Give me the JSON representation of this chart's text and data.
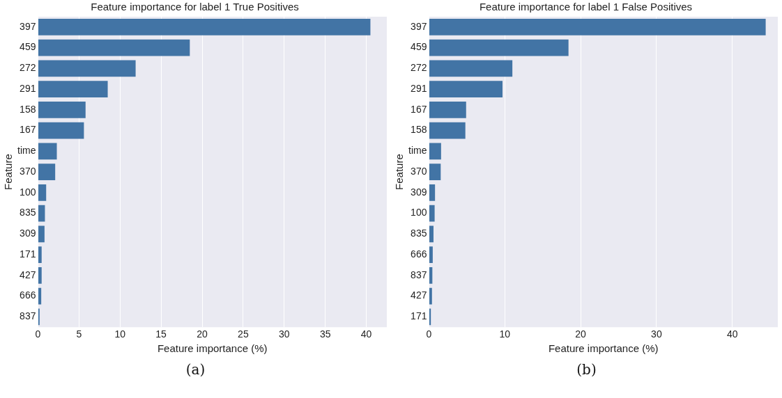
{
  "chart_data": [
    {
      "type": "bar",
      "orientation": "horizontal",
      "title": "Feature importance for label 1 True Positives",
      "xlabel": "Feature importance (%)",
      "ylabel": "Feature",
      "categories": [
        "397",
        "459",
        "272",
        "291",
        "158",
        "167",
        "time",
        "370",
        "100",
        "835",
        "309",
        "171",
        "427",
        "666",
        "837"
      ],
      "values": [
        40.5,
        18.5,
        11.9,
        8.5,
        5.8,
        5.6,
        2.3,
        2.1,
        1.0,
        0.85,
        0.8,
        0.45,
        0.45,
        0.4,
        0.2
      ],
      "color": "#4274a5",
      "xlim": [
        0,
        42.5
      ],
      "xticks": [
        0,
        5,
        10,
        15,
        20,
        25,
        30,
        35,
        40
      ],
      "grid": "x",
      "legend": false,
      "annotations": [
        "(a)"
      ]
    },
    {
      "type": "bar",
      "orientation": "horizontal",
      "title": "Feature importance for label 1 False Positives",
      "xlabel": "Feature importance (%)",
      "ylabel": "Feature",
      "categories": [
        "397",
        "459",
        "272",
        "291",
        "167",
        "158",
        "time",
        "370",
        "309",
        "100",
        "835",
        "666",
        "837",
        "427",
        "171"
      ],
      "values": [
        44.4,
        18.4,
        11.0,
        9.7,
        4.9,
        4.8,
        1.6,
        1.55,
        0.8,
        0.75,
        0.6,
        0.5,
        0.45,
        0.4,
        0.25
      ],
      "color": "#4274a5",
      "xlim": [
        0,
        46
      ],
      "xticks": [
        0,
        10,
        20,
        30,
        40
      ],
      "grid": "x",
      "legend": false,
      "annotations": [
        "(b)"
      ]
    }
  ]
}
